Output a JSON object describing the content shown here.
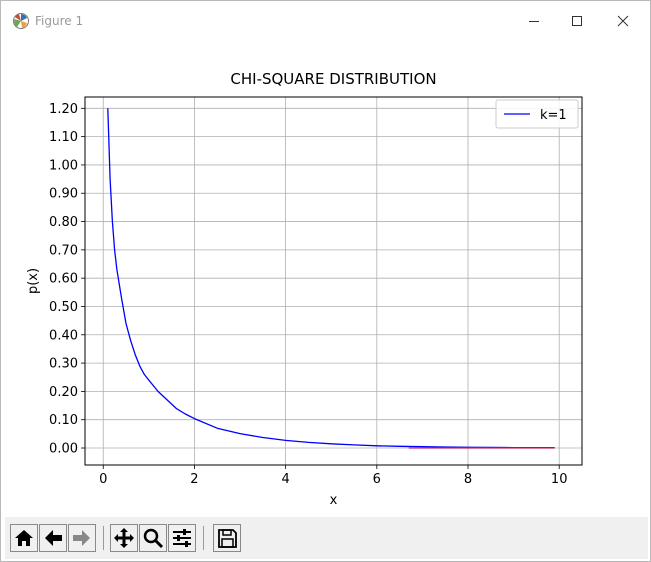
{
  "window": {
    "title": "Figure 1",
    "icons": {
      "app": "matplotlib-icon",
      "minimize": "minimize-icon",
      "maximize": "maximize-icon",
      "close": "close-icon"
    }
  },
  "chart_data": {
    "type": "line",
    "title": "CHI-SQUARE DISTRIBUTION",
    "xlabel": "x",
    "ylabel": "p(x)",
    "xlim": [
      -0.4,
      10.5
    ],
    "ylim": [
      -0.06,
      1.24
    ],
    "xticks": [
      0,
      2,
      4,
      6,
      8,
      10
    ],
    "xtick_labels": [
      "0",
      "2",
      "4",
      "6",
      "8",
      "10"
    ],
    "yticks": [
      0.0,
      0.1,
      0.2,
      0.3,
      0.4,
      0.5,
      0.6,
      0.7,
      0.8,
      0.9,
      1.0,
      1.1,
      1.2
    ],
    "ytick_labels": [
      "0.00",
      "0.10",
      "0.20",
      "0.30",
      "0.40",
      "0.50",
      "0.60",
      "0.70",
      "0.80",
      "0.90",
      "1.00",
      "1.10",
      "1.20"
    ],
    "grid": true,
    "legend_position": "top-right",
    "series": [
      {
        "name": "k=1",
        "color": "#0000ff",
        "x": [
          0.1,
          0.15,
          0.2,
          0.25,
          0.3,
          0.4,
          0.5,
          0.6,
          0.7,
          0.8,
          0.9,
          1.0,
          1.2,
          1.4,
          1.6,
          1.8,
          2.0,
          2.5,
          3.0,
          3.5,
          4.0,
          4.5,
          5.0,
          5.5,
          6.0,
          6.5,
          7.0,
          7.5,
          8.0,
          8.5,
          9.0,
          9.5,
          9.9
        ],
        "y": [
          1.2,
          0.95,
          0.8,
          0.7,
          0.63,
          0.53,
          0.44,
          0.38,
          0.33,
          0.29,
          0.26,
          0.24,
          0.2,
          0.17,
          0.14,
          0.12,
          0.104,
          0.07,
          0.051,
          0.037,
          0.027,
          0.02,
          0.015,
          0.011,
          0.008,
          0.0061,
          0.0046,
          0.0035,
          0.0026,
          0.002,
          0.0015,
          0.0012,
          0.001
        ]
      },
      {
        "color": "#c03060",
        "x": [
          6.7,
          9.9
        ],
        "y": [
          0.0,
          0.0
        ]
      }
    ]
  },
  "toolbar": {
    "buttons": [
      {
        "name": "home-button",
        "icon": "home-icon"
      },
      {
        "name": "back-button",
        "icon": "arrow-left-icon"
      },
      {
        "name": "forward-button",
        "icon": "arrow-right-icon"
      },
      {
        "name": "pan-button",
        "icon": "move-icon"
      },
      {
        "name": "zoom-button",
        "icon": "magnifier-icon"
      },
      {
        "name": "configure-subplots-button",
        "icon": "sliders-icon"
      },
      {
        "name": "save-button",
        "icon": "save-icon"
      }
    ]
  }
}
